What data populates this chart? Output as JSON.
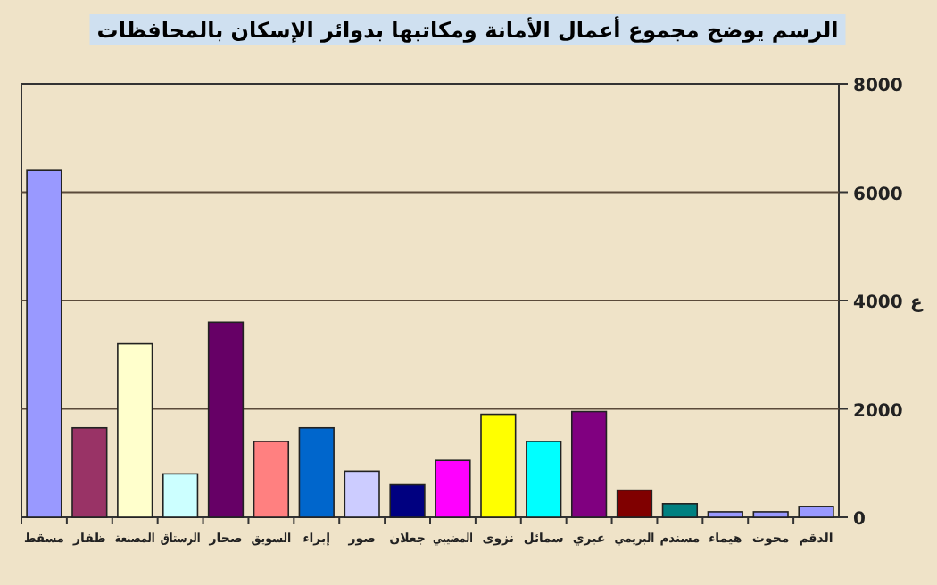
{
  "chart_data": {
    "type": "bar",
    "title": "الرسم يوضح مجموع أعمال الأمانة ومكاتبها بدوائر الإسكان بالمحافظات",
    "ylabel": "ع",
    "categories": [
      "مسقط",
      "ظفار",
      "المصنعة",
      "الرستاق",
      "صحار",
      "السويق",
      "إبراء",
      "صور",
      "جعلان",
      "المضيبي",
      "نزوى",
      "سمائل",
      "عبري",
      "البريمي",
      "مسندم",
      "هيماء",
      "محوت",
      "الدقم"
    ],
    "values": [
      6400,
      1650,
      3200,
      800,
      3600,
      1400,
      1650,
      850,
      600,
      1050,
      1900,
      1400,
      1950,
      500,
      250,
      100,
      100,
      200
    ],
    "colors": [
      "#9999ff",
      "#993366",
      "#ffffcc",
      "#ccffff",
      "#660066",
      "#ff8080",
      "#0066cc",
      "#ccccff",
      "#000080",
      "#ff00ff",
      "#ffff00",
      "#00ffff",
      "#800080",
      "#800000",
      "#008080",
      "#9999ff",
      "#9999ff",
      "#9999ff"
    ],
    "ylim": [
      0,
      8000
    ],
    "yticks": [
      0,
      2000,
      4000,
      6000,
      8000
    ],
    "grid": "y"
  }
}
